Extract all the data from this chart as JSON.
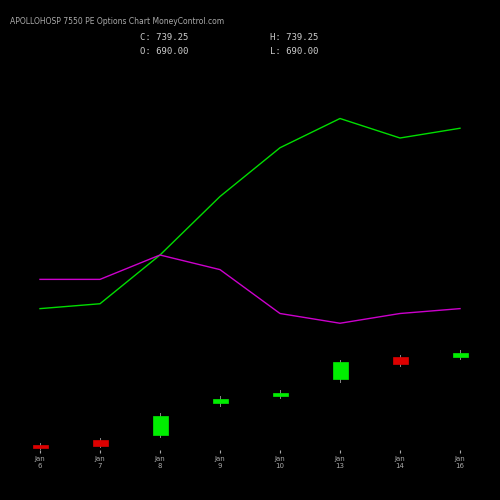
{
  "title": "APOLLOHOSP 7550 PE Options Chart MoneyControl.com",
  "ohlc_text_left": "C: 739.25",
  "ohlc_text_right": "H: 739.25",
  "ohlc_text_left2": "O: 690.00",
  "ohlc_text_right2": "L: 690.00",
  "background_color": "#000000",
  "green_line_color": "#00dd00",
  "magenta_line_color": "#cc00cc",
  "candle_up_color": "#00ee00",
  "candle_down_color": "#dd0000",
  "candle_wick_color": "#888888",
  "x_labels": [
    "Jan\n6",
    "Jan\n7",
    "Jan\n8",
    "Jan\n9",
    "Jan\n10",
    "Jan\n13",
    "Jan\n14",
    "Jan\n16"
  ],
  "x_indices": [
    0,
    1,
    2,
    3,
    4,
    5,
    6,
    7
  ],
  "green_line_x": [
    0,
    1,
    2,
    3,
    4,
    5,
    6,
    7
  ],
  "green_line_y": [
    145,
    150,
    200,
    260,
    310,
    340,
    320,
    330
  ],
  "magenta_line_x": [
    0,
    1,
    2,
    3,
    4,
    5,
    6,
    7
  ],
  "magenta_line_y": [
    175,
    175,
    200,
    185,
    140,
    130,
    140,
    145
  ],
  "candles": [
    {
      "x": 0,
      "open": 5,
      "close": 2,
      "high": 7,
      "low": 1,
      "up": false
    },
    {
      "x": 1,
      "open": 10,
      "close": 4,
      "high": 12,
      "low": 3,
      "up": false
    },
    {
      "x": 2,
      "open": 15,
      "close": 35,
      "high": 38,
      "low": 13,
      "up": true
    },
    {
      "x": 3,
      "open": 48,
      "close": 52,
      "high": 55,
      "low": 45,
      "up": true
    },
    {
      "x": 4,
      "open": 55,
      "close": 58,
      "high": 62,
      "low": 53,
      "up": true
    },
    {
      "x": 5,
      "open": 73,
      "close": 90,
      "high": 92,
      "low": 70,
      "up": true
    },
    {
      "x": 6,
      "open": 95,
      "close": 88,
      "high": 97,
      "low": 86,
      "up": false
    },
    {
      "x": 7,
      "open": 95,
      "close": 100,
      "high": 103,
      "low": 93,
      "up": true
    }
  ],
  "ylim": [
    0,
    400
  ],
  "xlim": [
    -0.5,
    7.5
  ],
  "figsize": [
    5.0,
    5.0
  ],
  "dpi": 100,
  "title_fontsize": 5.5,
  "label_fontsize": 5
}
